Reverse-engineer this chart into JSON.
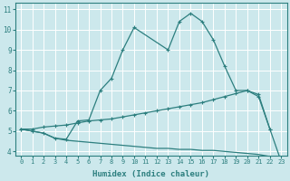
{
  "bg_color": "#cce8ec",
  "grid_color": "#ffffff",
  "line_color": "#2d7f7f",
  "xlabel": "Humidex (Indice chaleur)",
  "xlim": [
    -0.5,
    23.5
  ],
  "ylim": [
    3.8,
    11.3
  ],
  "xticks": [
    0,
    1,
    2,
    3,
    4,
    5,
    6,
    7,
    8,
    9,
    10,
    11,
    12,
    13,
    14,
    15,
    16,
    17,
    18,
    19,
    20,
    21,
    22,
    23
  ],
  "yticks": [
    4,
    5,
    6,
    7,
    8,
    9,
    10,
    11
  ],
  "curve_top_x": [
    0,
    1,
    2,
    3,
    4,
    5,
    6,
    7,
    8,
    9,
    10,
    13,
    14,
    15,
    16,
    17,
    18,
    19,
    20,
    21,
    22,
    23
  ],
  "curve_top_y": [
    5.1,
    5.0,
    4.9,
    4.65,
    4.6,
    5.5,
    5.55,
    7.0,
    7.6,
    9.0,
    10.1,
    9.0,
    10.4,
    10.8,
    10.4,
    9.5,
    8.2,
    7.0,
    7.0,
    6.7,
    5.1,
    3.5
  ],
  "curve_mid_x": [
    0,
    1,
    2,
    3,
    4,
    5,
    6,
    7,
    8,
    9,
    10,
    11,
    12,
    13,
    14,
    15,
    16,
    17,
    18,
    19,
    20,
    21,
    22
  ],
  "curve_mid_y": [
    5.1,
    5.1,
    5.2,
    5.25,
    5.3,
    5.4,
    5.5,
    5.55,
    5.6,
    5.7,
    5.8,
    5.9,
    6.0,
    6.1,
    6.2,
    6.3,
    6.4,
    6.55,
    6.7,
    6.85,
    7.0,
    6.8,
    5.1
  ],
  "curve_bot_x": [
    0,
    1,
    2,
    3,
    4,
    5,
    6,
    7,
    8,
    9,
    10,
    11,
    12,
    13,
    14,
    15,
    16,
    17,
    18,
    19,
    20,
    21,
    22,
    23
  ],
  "curve_bot_y": [
    5.1,
    5.0,
    4.9,
    4.65,
    4.55,
    4.5,
    4.45,
    4.4,
    4.35,
    4.3,
    4.25,
    4.2,
    4.15,
    4.15,
    4.1,
    4.1,
    4.05,
    4.05,
    4.0,
    3.95,
    3.9,
    3.85,
    3.75,
    3.55
  ]
}
